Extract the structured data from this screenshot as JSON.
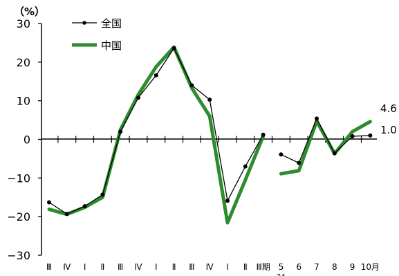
{
  "chart_data": {
    "type": "line",
    "unit_label": "（%）",
    "ylim": [
      -30,
      30
    ],
    "y_ticks": [
      30,
      20,
      10,
      0,
      -10,
      -20,
      -30
    ],
    "y_tick_labels": [
      "30",
      "20",
      "10",
      "0",
      "−10",
      "−20",
      "−30"
    ],
    "x_labels": [
      "Ⅲ",
      "Ⅳ",
      "Ⅰ",
      "Ⅱ",
      "Ⅲ",
      "Ⅳ",
      "Ⅰ",
      "Ⅱ",
      "Ⅲ",
      "Ⅳ",
      "Ⅰ",
      "Ⅱ",
      "Ⅲ期",
      "5",
      "6",
      "7",
      "8",
      "9",
      "10月"
    ],
    "x_sub_label": "24",
    "series": [
      {
        "name": "全国",
        "color": "#000000",
        "values": [
          -16.3,
          -19.3,
          -17.3,
          -14.3,
          2.0,
          10.8,
          16.6,
          23.6,
          14.0,
          10.3,
          -15.9,
          -7.0,
          1.2,
          -3.9,
          -6.1,
          5.4,
          -3.6,
          0.8,
          1.0
        ],
        "end_label": "1.0"
      },
      {
        "name": "中国",
        "color": "#2e8b2e",
        "values": [
          -18.1,
          -19.4,
          -17.6,
          -15.0,
          2.5,
          11.6,
          18.8,
          23.9,
          13.3,
          6.0,
          -21.6,
          -10.5,
          0.8,
          -8.9,
          -8.1,
          4.7,
          -3.7,
          2.0,
          4.6
        ],
        "end_label": "4.6"
      }
    ],
    "segments": [
      [
        0,
        12
      ],
      [
        13,
        18
      ]
    ]
  }
}
